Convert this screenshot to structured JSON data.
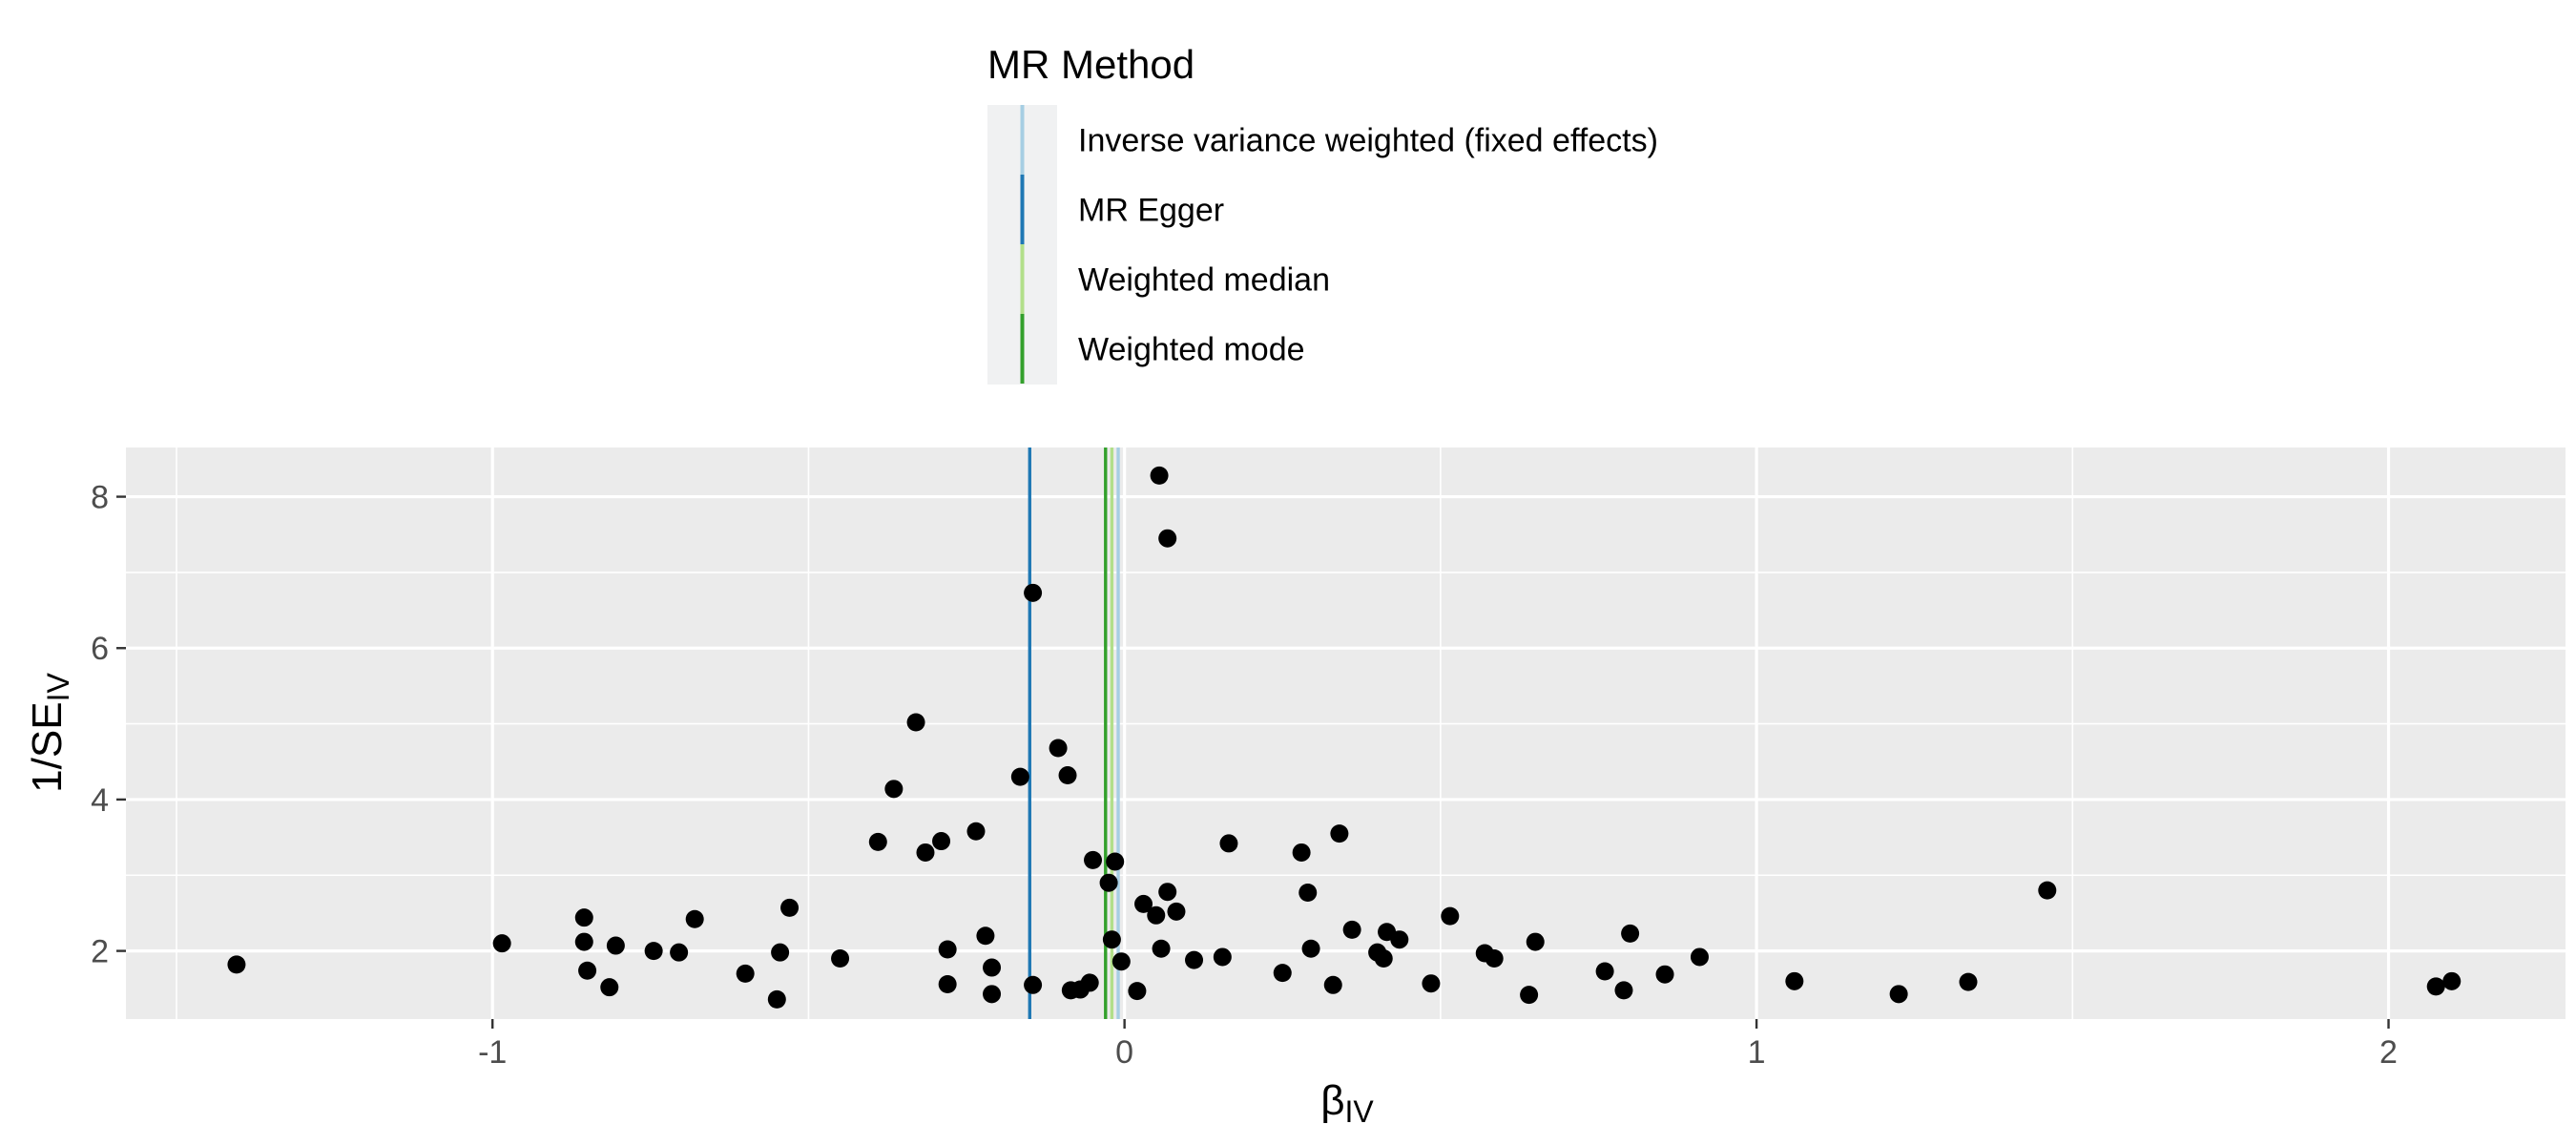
{
  "chart_data": {
    "type": "scatter",
    "title": "",
    "xlabel": {
      "main": "β",
      "sub": "IV"
    },
    "ylabel": {
      "main": "1/SE",
      "sub": "IV"
    },
    "xlim": [
      -1.58,
      2.28
    ],
    "ylim": [
      1.1,
      8.65
    ],
    "x_ticks": [
      -1,
      0,
      1,
      2
    ],
    "x_tick_labels": [
      "-1",
      "0",
      "1",
      "2"
    ],
    "y_ticks": [
      2,
      4,
      6,
      8
    ],
    "y_tick_labels": [
      "2",
      "4",
      "6",
      "8"
    ],
    "grid": true,
    "legend": {
      "title": "MR Method",
      "position": "top",
      "entries": [
        {
          "label": "Inverse variance weighted (fixed effects)",
          "color": "#a6cee3"
        },
        {
          "label": "MR Egger",
          "color": "#1f78b4"
        },
        {
          "label": "Weighted median",
          "color": "#b2df8a"
        },
        {
          "label": "Weighted mode",
          "color": "#33a02c"
        }
      ]
    },
    "estimates": [
      {
        "method": "Inverse variance weighted (fixed effects)",
        "value": -0.01,
        "color": "#a6cee3"
      },
      {
        "method": "MR Egger",
        "value": -0.15,
        "color": "#1f78b4"
      },
      {
        "method": "Weighted median",
        "value": -0.02,
        "color": "#b2df8a"
      },
      {
        "method": "Weighted mode",
        "value": -0.03,
        "color": "#33a02c"
      }
    ],
    "point_color": "#000000",
    "points": [
      [
        -1.405,
        1.82
      ],
      [
        -0.985,
        2.1
      ],
      [
        -0.855,
        2.44
      ],
      [
        -0.855,
        2.12
      ],
      [
        -0.85,
        1.74
      ],
      [
        -0.815,
        1.52
      ],
      [
        -0.805,
        2.07
      ],
      [
        -0.745,
        2.0
      ],
      [
        -0.705,
        1.98
      ],
      [
        -0.68,
        2.42
      ],
      [
        -0.6,
        1.7
      ],
      [
        -0.55,
        1.36
      ],
      [
        -0.545,
        1.98
      ],
      [
        -0.53,
        2.57
      ],
      [
        -0.45,
        1.9
      ],
      [
        -0.39,
        3.44
      ],
      [
        -0.365,
        4.14
      ],
      [
        -0.33,
        5.02
      ],
      [
        -0.315,
        3.3
      ],
      [
        -0.29,
        3.45
      ],
      [
        -0.28,
        2.02
      ],
      [
        -0.28,
        1.56
      ],
      [
        -0.235,
        3.58
      ],
      [
        -0.22,
        2.2
      ],
      [
        -0.21,
        1.78
      ],
      [
        -0.21,
        1.43
      ],
      [
        -0.165,
        4.3
      ],
      [
        -0.145,
        6.73
      ],
      [
        -0.145,
        1.55
      ],
      [
        -0.105,
        4.68
      ],
      [
        -0.09,
        4.32
      ],
      [
        -0.085,
        1.48
      ],
      [
        -0.07,
        1.49
      ],
      [
        -0.055,
        1.58
      ],
      [
        -0.05,
        3.2
      ],
      [
        -0.025,
        2.9
      ],
      [
        -0.02,
        2.15
      ],
      [
        -0.015,
        3.18
      ],
      [
        -0.005,
        1.86
      ],
      [
        0.02,
        1.47
      ],
      [
        0.03,
        2.62
      ],
      [
        0.05,
        2.47
      ],
      [
        0.055,
        8.28
      ],
      [
        0.058,
        2.03
      ],
      [
        0.068,
        7.45
      ],
      [
        0.068,
        2.78
      ],
      [
        0.082,
        2.52
      ],
      [
        0.11,
        1.88
      ],
      [
        0.155,
        1.92
      ],
      [
        0.165,
        3.42
      ],
      [
        0.25,
        1.71
      ],
      [
        0.28,
        3.3
      ],
      [
        0.29,
        2.77
      ],
      [
        0.295,
        2.03
      ],
      [
        0.33,
        1.55
      ],
      [
        0.34,
        3.55
      ],
      [
        0.36,
        2.28
      ],
      [
        0.4,
        1.98
      ],
      [
        0.41,
        1.9
      ],
      [
        0.415,
        2.25
      ],
      [
        0.435,
        2.15
      ],
      [
        0.485,
        1.57
      ],
      [
        0.515,
        2.46
      ],
      [
        0.57,
        1.97
      ],
      [
        0.585,
        1.9
      ],
      [
        0.64,
        1.42
      ],
      [
        0.65,
        2.12
      ],
      [
        0.76,
        1.73
      ],
      [
        0.79,
        1.48
      ],
      [
        0.8,
        2.23
      ],
      [
        0.855,
        1.69
      ],
      [
        0.91,
        1.92
      ],
      [
        1.06,
        1.6
      ],
      [
        1.225,
        1.43
      ],
      [
        1.335,
        1.59
      ],
      [
        1.46,
        2.8
      ],
      [
        2.075,
        1.53
      ],
      [
        2.1,
        1.6
      ]
    ]
  }
}
